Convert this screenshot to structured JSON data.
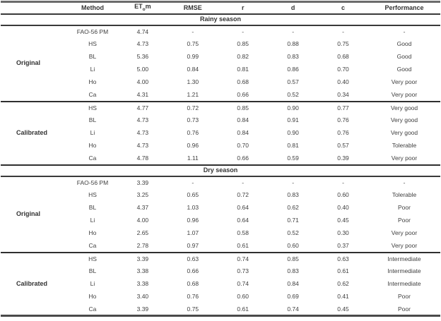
{
  "table": {
    "header": {
      "group": "",
      "method": "Method",
      "etom_main": "ET",
      "etom_sub": "o",
      "etom_tail": "m",
      "rmse": "RMSE",
      "r": "r",
      "d": "d",
      "c": "c",
      "performance": "Performance"
    },
    "column_keys": [
      "method",
      "etom",
      "rmse",
      "r",
      "d",
      "c",
      "performance"
    ],
    "sections": [
      {
        "season": "Rainy season",
        "groups": [
          {
            "label": "Original",
            "rows": [
              [
                "FAO-56 PM",
                "4.74",
                "-",
                "-",
                "-",
                "-",
                "-"
              ],
              [
                "HS",
                "4.73",
                "0.75",
                "0.85",
                "0.88",
                "0.75",
                "Good"
              ],
              [
                "BL",
                "5.36",
                "0.99",
                "0.82",
                "0.83",
                "0.68",
                "Good"
              ],
              [
                "Li",
                "5.00",
                "0.84",
                "0.81",
                "0.86",
                "0.70",
                "Good"
              ],
              [
                "Ho",
                "4.00",
                "1.30",
                "0.68",
                "0.57",
                "0.40",
                "Very poor"
              ],
              [
                "Ca",
                "4.31",
                "1.21",
                "0.66",
                "0.52",
                "0.34",
                "Very poor"
              ]
            ]
          },
          {
            "label": "Calibrated",
            "rows": [
              [
                "HS",
                "4.77",
                "0.72",
                "0.85",
                "0.90",
                "0.77",
                "Very good"
              ],
              [
                "BL",
                "4.73",
                "0.73",
                "0.84",
                "0.91",
                "0.76",
                "Very good"
              ],
              [
                "Li",
                "4.73",
                "0.76",
                "0.84",
                "0.90",
                "0.76",
                "Very good"
              ],
              [
                "Ho",
                "4.73",
                "0.96",
                "0.70",
                "0.81",
                "0.57",
                "Tolerable"
              ],
              [
                "Ca",
                "4.78",
                "1.11",
                "0.66",
                "0.59",
                "0.39",
                "Very poor"
              ]
            ]
          }
        ]
      },
      {
        "season": "Dry season",
        "groups": [
          {
            "label": "Original",
            "rows": [
              [
                "FAO-56 PM",
                "3.39",
                "-",
                "-",
                "-",
                "-",
                "-"
              ],
              [
                "HS",
                "3.25",
                "0.65",
                "0.72",
                "0.83",
                "0.60",
                "Tolerable"
              ],
              [
                "BL",
                "4.37",
                "1.03",
                "0.64",
                "0.62",
                "0.40",
                "Poor"
              ],
              [
                "Li",
                "4.00",
                "0.96",
                "0.64",
                "0.71",
                "0.45",
                "Poor"
              ],
              [
                "Ho",
                "2.65",
                "1.07",
                "0.58",
                "0.52",
                "0.30",
                "Very poor"
              ],
              [
                "Ca",
                "2.78",
                "0.97",
                "0.61",
                "0.60",
                "0.37",
                "Very poor"
              ]
            ]
          },
          {
            "label": "Calibrated",
            "rows": [
              [
                "HS",
                "3.39",
                "0.63",
                "0.74",
                "0.85",
                "0.63",
                "Intermediate"
              ],
              [
                "BL",
                "3.38",
                "0.66",
                "0.73",
                "0.83",
                "0.61",
                "Intermediate"
              ],
              [
                "Li",
                "3.38",
                "0.68",
                "0.74",
                "0.84",
                "0.62",
                "Intermediate"
              ],
              [
                "Ho",
                "3.40",
                "0.76",
                "0.60",
                "0.69",
                "0.41",
                "Poor"
              ],
              [
                "Ca",
                "3.39",
                "0.75",
                "0.61",
                "0.74",
                "0.45",
                "Poor"
              ]
            ]
          }
        ]
      }
    ]
  },
  "colors": {
    "text": "#3f3f3f",
    "bold_text": "#333333",
    "rule": "#3a3a3a"
  }
}
